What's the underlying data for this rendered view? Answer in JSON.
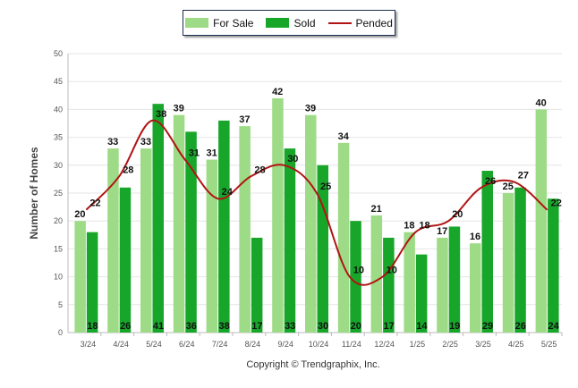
{
  "legend": {
    "for_sale": "For Sale",
    "sold": "Sold",
    "pended": "Pended"
  },
  "copyright": "Copyright © Trendgraphix, Inc.",
  "colors": {
    "for_sale": "#9edb86",
    "sold": "#17a62a",
    "pended": "#b01414",
    "grid": "#e6e6e6"
  },
  "chart_data": {
    "type": "bar",
    "title": "",
    "xlabel": "",
    "ylabel": "Number of Homes",
    "ylim": [
      0,
      50
    ],
    "yticks": [
      0,
      5,
      10,
      15,
      20,
      25,
      30,
      35,
      40,
      45,
      50
    ],
    "grid": true,
    "legend_position": "top-center",
    "categories": [
      "3/24",
      "4/24",
      "5/24",
      "6/24",
      "7/24",
      "8/24",
      "9/24",
      "10/24",
      "11/24",
      "12/24",
      "1/25",
      "2/25",
      "3/25",
      "4/25",
      "5/25"
    ],
    "series": [
      {
        "name": "For Sale",
        "type": "bar",
        "values": [
          20,
          33,
          33,
          39,
          31,
          37,
          42,
          39,
          34,
          21,
          18,
          17,
          16,
          25,
          40
        ]
      },
      {
        "name": "Sold",
        "type": "bar",
        "values": [
          18,
          26,
          41,
          36,
          38,
          17,
          33,
          30,
          20,
          17,
          14,
          19,
          29,
          26,
          24
        ]
      },
      {
        "name": "Pended",
        "type": "line",
        "values": [
          22,
          28,
          38,
          31,
          24,
          28,
          30,
          25,
          10,
          10,
          18,
          20,
          26,
          27,
          22
        ]
      }
    ]
  }
}
